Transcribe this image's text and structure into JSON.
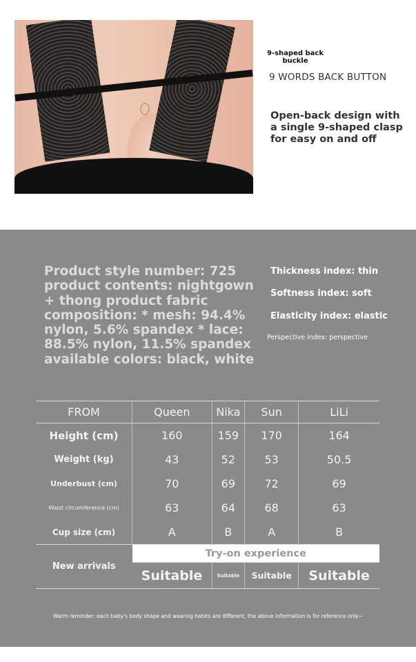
{
  "feature": {
    "label_cn_translation": "9-shaped back buckle",
    "label_en": "9 WORDS BACK BUTTON",
    "description": "Open-back design with a single 9-shaped clasp for easy on and off"
  },
  "specs": {
    "text": "Product style number: 725 product contents: nightgown + thong product fabric composition: * mesh: 94.4% nylon, 5.6% spandex * lace: 88.5% nylon, 11.5% spandex available colors: black, white",
    "indices": [
      "Thickness index: thin",
      "Softness index: soft",
      "Elasticity index: elastic",
      "Perspective index: perspective"
    ]
  },
  "size_table": {
    "headers": [
      "FROM",
      "Queen",
      "Nika",
      "Sun",
      "LiLi"
    ],
    "rows": [
      {
        "label": "Height (cm)",
        "values": [
          "160",
          "159",
          "170",
          "164"
        ]
      },
      {
        "label": "Weight (kg)",
        "values": [
          "43",
          "52",
          "53",
          "50.5"
        ]
      },
      {
        "label": "Underbust (cm)",
        "values": [
          "70",
          "69",
          "72",
          "69"
        ]
      },
      {
        "label": "Waist circumference (cm)",
        "values": [
          "63",
          "64",
          "68",
          "63"
        ]
      },
      {
        "label": "Cup size (cm)",
        "values": [
          "A",
          "B",
          "A",
          "B"
        ]
      }
    ],
    "footer_label": "New arrivals",
    "tryon_title": "Try-on experience",
    "tryon_values": [
      "Suitable",
      "Suitable",
      "Suitable",
      "Suitable"
    ]
  },
  "reminder": "Warm reminder: each baby's body shape and wearing habits are different, the above information is for reference only~"
}
